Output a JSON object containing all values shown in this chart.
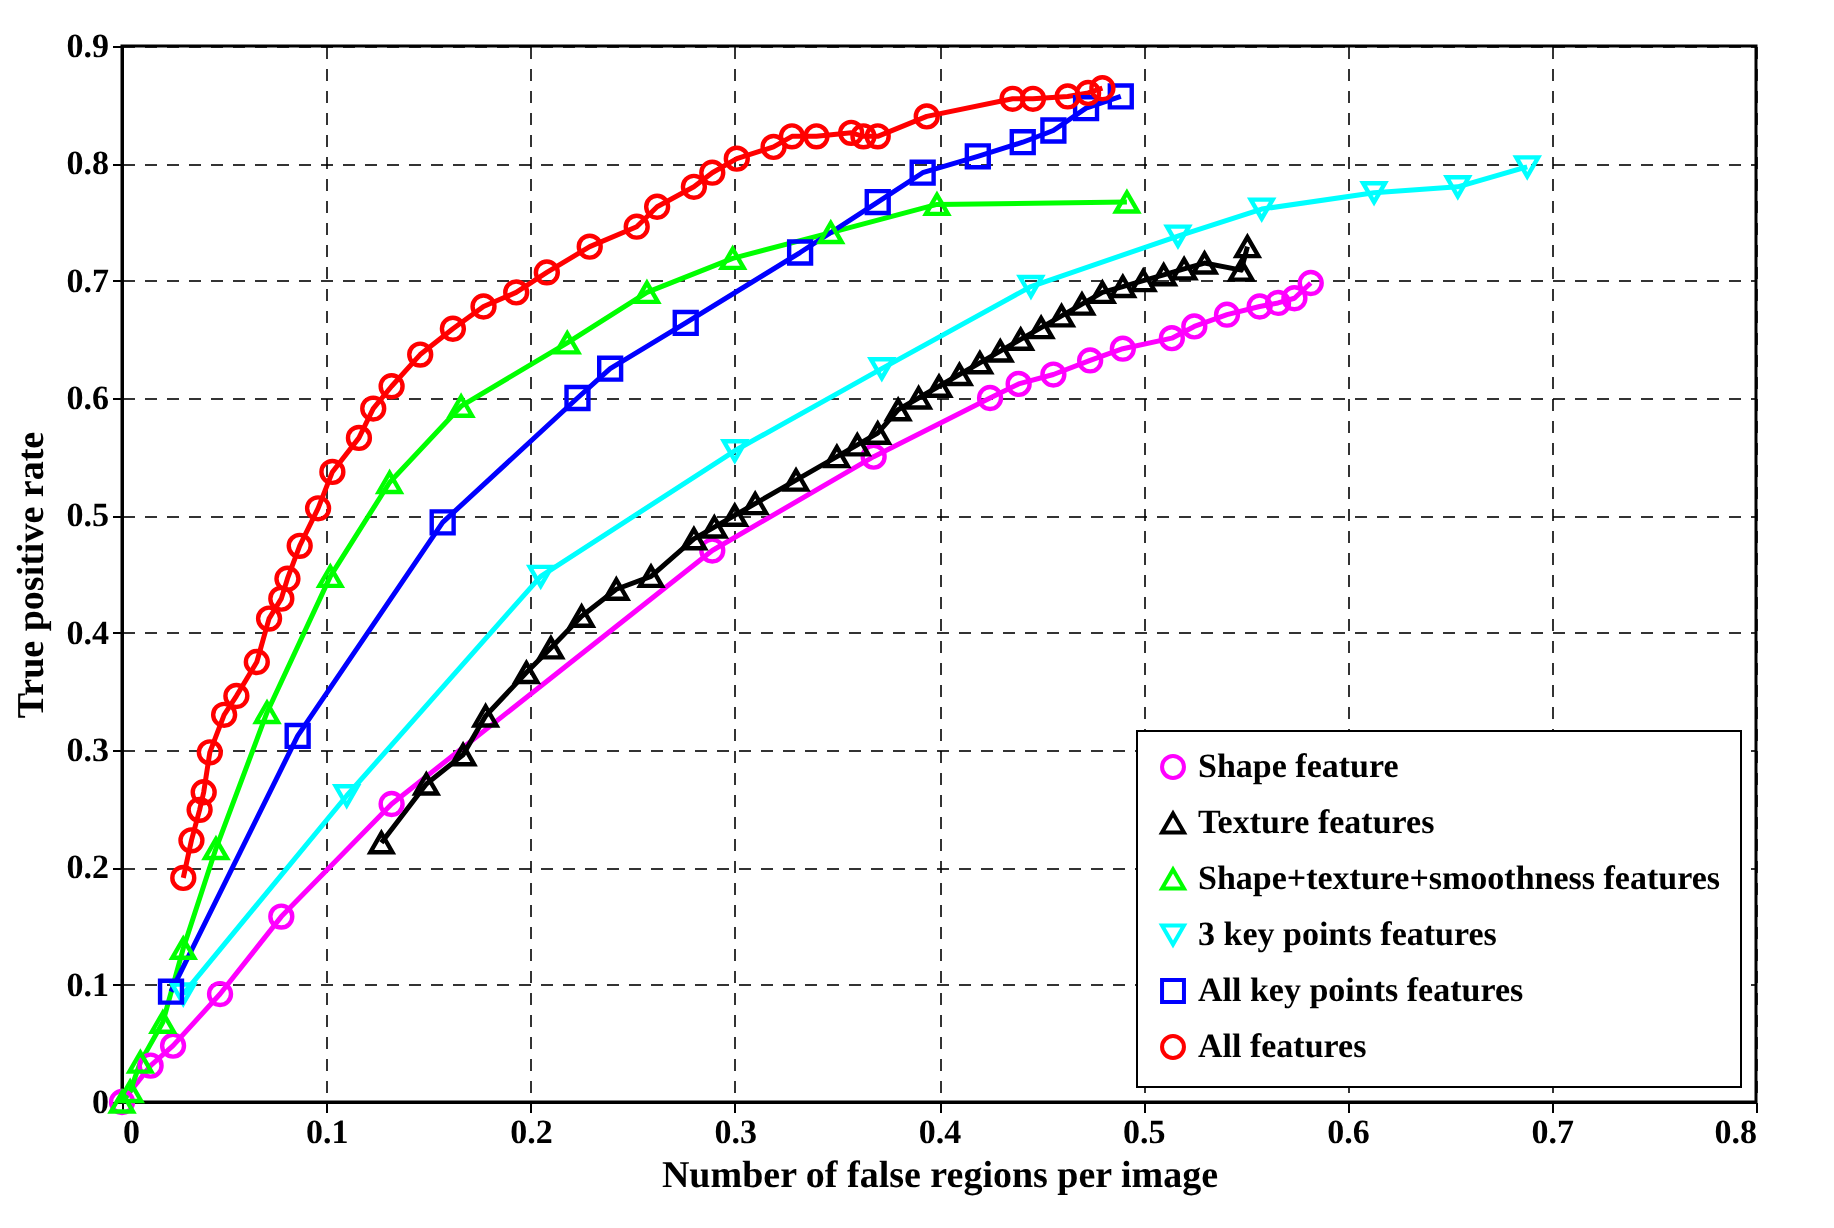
{
  "chart_data": {
    "type": "line",
    "xlabel": "Number of false regions per image",
    "ylabel": "True positive rate",
    "xlim": [
      0,
      0.8
    ],
    "ylim": [
      0,
      0.9
    ],
    "xticks": [
      0,
      0.1,
      0.2,
      0.3,
      0.4,
      0.5,
      0.6,
      0.7,
      0.8
    ],
    "yticks": [
      0,
      0.1,
      0.2,
      0.3,
      0.4,
      0.5,
      0.6,
      0.7,
      0.8,
      0.9
    ],
    "grid": true,
    "legend": "bottom right",
    "line_style": "solid",
    "series": [
      {
        "name": "Shape feature",
        "color": "#ff00ff",
        "marker": "circle",
        "x": [
          0,
          0.014,
          0.025,
          0.048,
          0.078,
          0.132,
          0.289,
          0.368,
          0.425,
          0.439,
          0.456,
          0.474,
          0.49,
          0.514,
          0.525,
          0.541,
          0.557,
          0.566,
          0.574,
          0.582
        ],
        "values": [
          0,
          0.031,
          0.048,
          0.092,
          0.158,
          0.254,
          0.47,
          0.55,
          0.6,
          0.612,
          0.62,
          0.632,
          0.642,
          0.651,
          0.661,
          0.671,
          0.678,
          0.681,
          0.685,
          0.698
        ]
      },
      {
        "name": "Texture features",
        "color": "#000000",
        "marker": "triangle",
        "x": [
          0.127,
          0.149,
          0.167,
          0.178,
          0.198,
          0.21,
          0.225,
          0.242,
          0.259,
          0.28,
          0.29,
          0.3,
          0.31,
          0.33,
          0.35,
          0.36,
          0.37,
          0.38,
          0.39,
          0.4,
          0.41,
          0.42,
          0.43,
          0.44,
          0.45,
          0.46,
          0.47,
          0.48,
          0.49,
          0.5,
          0.51,
          0.52,
          0.53,
          0.548,
          0.551
        ],
        "values": [
          0.221,
          0.271,
          0.296,
          0.329,
          0.366,
          0.387,
          0.414,
          0.437,
          0.448,
          0.48,
          0.49,
          0.5,
          0.51,
          0.53,
          0.55,
          0.56,
          0.57,
          0.59,
          0.6,
          0.61,
          0.62,
          0.63,
          0.64,
          0.65,
          0.66,
          0.67,
          0.68,
          0.69,
          0.695,
          0.7,
          0.705,
          0.71,
          0.715,
          0.709,
          0.729
        ]
      },
      {
        "name": "Shape+texture+smoothness features",
        "color": "#00ff00",
        "marker": "triangle",
        "x": [
          0,
          0.004,
          0.009,
          0.02,
          0.03,
          0.046,
          0.071,
          0.102,
          0.131,
          0.166,
          0.218,
          0.257,
          0.299,
          0.347,
          0.399,
          0.492
        ],
        "values": [
          0,
          0.009,
          0.034,
          0.068,
          0.131,
          0.216,
          0.332,
          0.448,
          0.528,
          0.593,
          0.647,
          0.69,
          0.719,
          0.741,
          0.765,
          0.767
        ]
      },
      {
        "name": "3 key points features",
        "color": "#00ffff",
        "marker": "triangle-down",
        "x": [
          0.03,
          0.11,
          0.205,
          0.3,
          0.372,
          0.445,
          0.517,
          0.558,
          0.613,
          0.654,
          0.688
        ],
        "values": [
          0.092,
          0.261,
          0.448,
          0.555,
          0.625,
          0.695,
          0.738,
          0.761,
          0.775,
          0.78,
          0.797
        ]
      },
      {
        "name": "All key points features",
        "color": "#0000ff",
        "marker": "square",
        "x": [
          0.024,
          0.086,
          0.157,
          0.223,
          0.239,
          0.276,
          0.332,
          0.37,
          0.392,
          0.419,
          0.441,
          0.456,
          0.472,
          0.489
        ],
        "values": [
          0.094,
          0.312,
          0.494,
          0.6,
          0.625,
          0.664,
          0.724,
          0.767,
          0.792,
          0.806,
          0.818,
          0.828,
          0.847,
          0.857
        ]
      },
      {
        "name": "All features",
        "color": "#ff0000",
        "marker": "circle",
        "x": [
          0.03,
          0.034,
          0.038,
          0.04,
          0.043,
          0.05,
          0.056,
          0.066,
          0.072,
          0.078,
          0.081,
          0.087,
          0.096,
          0.103,
          0.116,
          0.123,
          0.132,
          0.146,
          0.162,
          0.177,
          0.193,
          0.208,
          0.229,
          0.252,
          0.262,
          0.28,
          0.289,
          0.301,
          0.319,
          0.328,
          0.34,
          0.357,
          0.363,
          0.37,
          0.394,
          0.436,
          0.446,
          0.463,
          0.473,
          0.48
        ],
        "values": [
          0.191,
          0.223,
          0.249,
          0.264,
          0.298,
          0.33,
          0.346,
          0.375,
          0.412,
          0.429,
          0.446,
          0.474,
          0.506,
          0.537,
          0.566,
          0.591,
          0.61,
          0.637,
          0.659,
          0.678,
          0.69,
          0.707,
          0.729,
          0.746,
          0.763,
          0.78,
          0.792,
          0.804,
          0.814,
          0.823,
          0.823,
          0.826,
          0.823,
          0.823,
          0.84,
          0.855,
          0.855,
          0.857,
          0.86,
          0.864
        ]
      }
    ]
  }
}
